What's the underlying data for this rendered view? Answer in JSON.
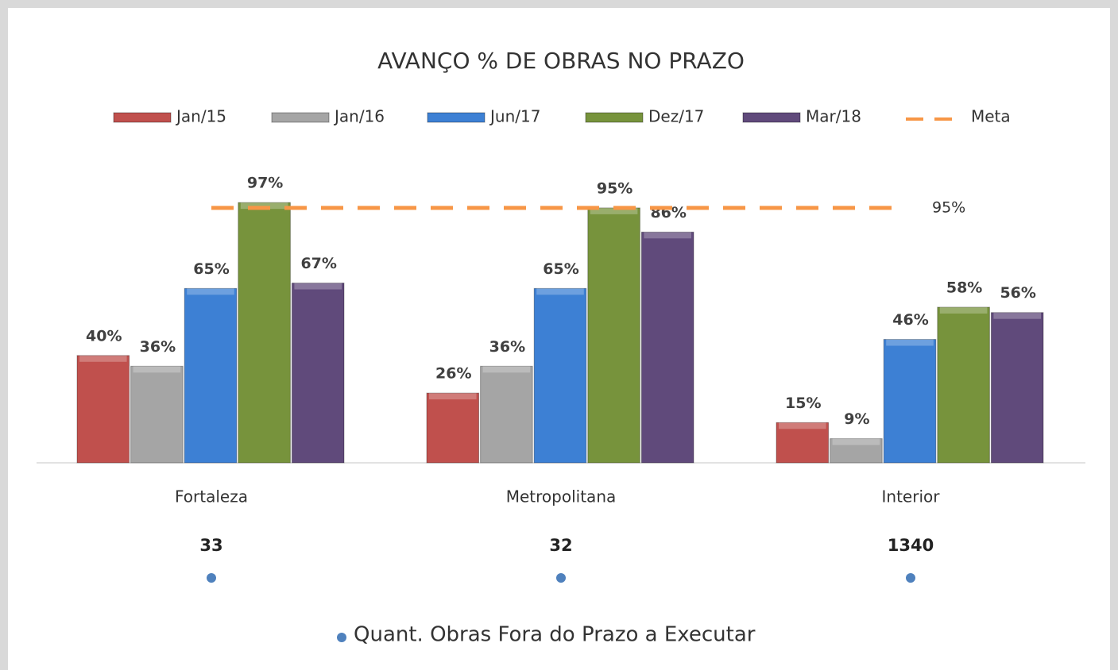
{
  "chart_data": {
    "type": "bar",
    "title": "AVANÇO % DE OBRAS NO PRAZO",
    "categories": [
      "Fortaleza",
      "Metropolitana",
      "Interior"
    ],
    "series": [
      {
        "name": "Jan/15",
        "color": "#c0504d",
        "values": [
          40,
          26,
          15
        ],
        "value_labels": [
          "40%",
          "26%",
          "15%"
        ]
      },
      {
        "name": "Jan/16",
        "color": "#a5a5a5",
        "values": [
          36,
          36,
          9
        ],
        "value_labels": [
          "36%",
          "36%",
          "9%"
        ]
      },
      {
        "name": "Jun/17",
        "color": "#3d80d4",
        "values": [
          65,
          65,
          46
        ],
        "value_labels": [
          "65%",
          "65%",
          "46%"
        ]
      },
      {
        "name": "Dez/17",
        "color": "#77933c",
        "values": [
          97,
          95,
          58
        ],
        "value_labels": [
          "97%",
          "95%",
          "58%"
        ]
      },
      {
        "name": "Mar/18",
        "color": "#604a7b",
        "values": [
          67,
          86,
          56
        ],
        "value_labels": [
          "67%",
          "86%",
          "56%"
        ]
      }
    ],
    "meta": {
      "name": "Meta",
      "color": "#f79646",
      "value": 95,
      "value_label": "95%"
    },
    "quant": {
      "name": "Quant. Obras Fora do Prazo a Executar",
      "color": "#4f81bd",
      "values": [
        33,
        32,
        1340
      ]
    },
    "ylim": [
      0,
      100
    ]
  }
}
